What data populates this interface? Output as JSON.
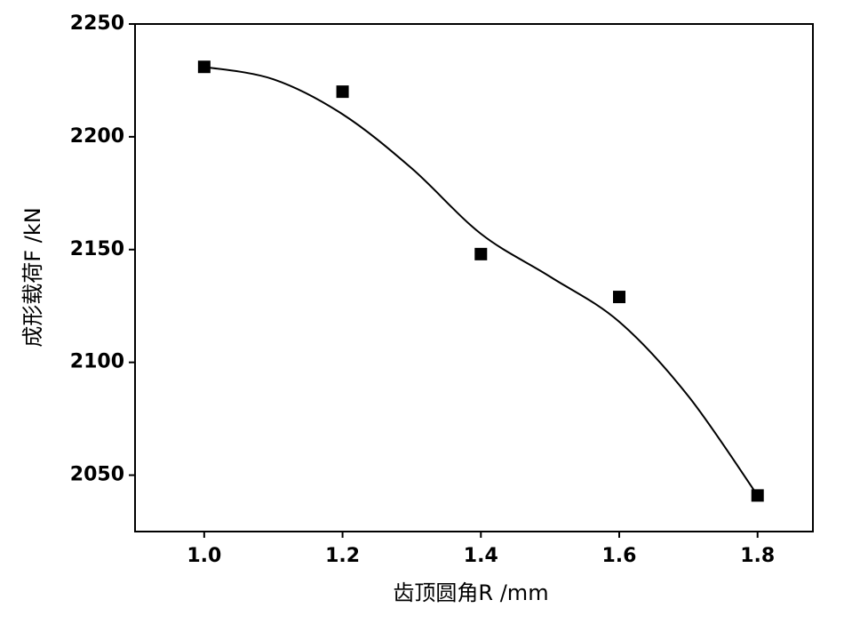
{
  "chart_data": {
    "type": "scatter",
    "x_label": "齿顶圆角R /mm",
    "y_label": "成形载荷F /kN",
    "x": [
      1.0,
      1.2,
      1.4,
      1.6,
      1.8
    ],
    "values": [
      2231,
      2220,
      2148,
      2129,
      2041
    ],
    "color": "#000000",
    "fit": {
      "x": [
        1.0,
        1.1,
        1.2,
        1.3,
        1.4,
        1.5,
        1.6,
        1.7,
        1.8
      ],
      "values": [
        2231,
        2225.5,
        2210,
        2186,
        2157,
        2138,
        2118,
        2085,
        2041
      ],
      "color": "#000000"
    },
    "xlim": [
      0.9,
      1.88
    ],
    "ylim": [
      2025,
      2250
    ],
    "xticks": [
      {
        "value": 1.0,
        "label": "1.0"
      },
      1.2,
      1.4,
      1.6,
      1.8
    ],
    "yticks": [
      2050,
      2100,
      2150,
      2200,
      2250
    ],
    "grid": false
  }
}
